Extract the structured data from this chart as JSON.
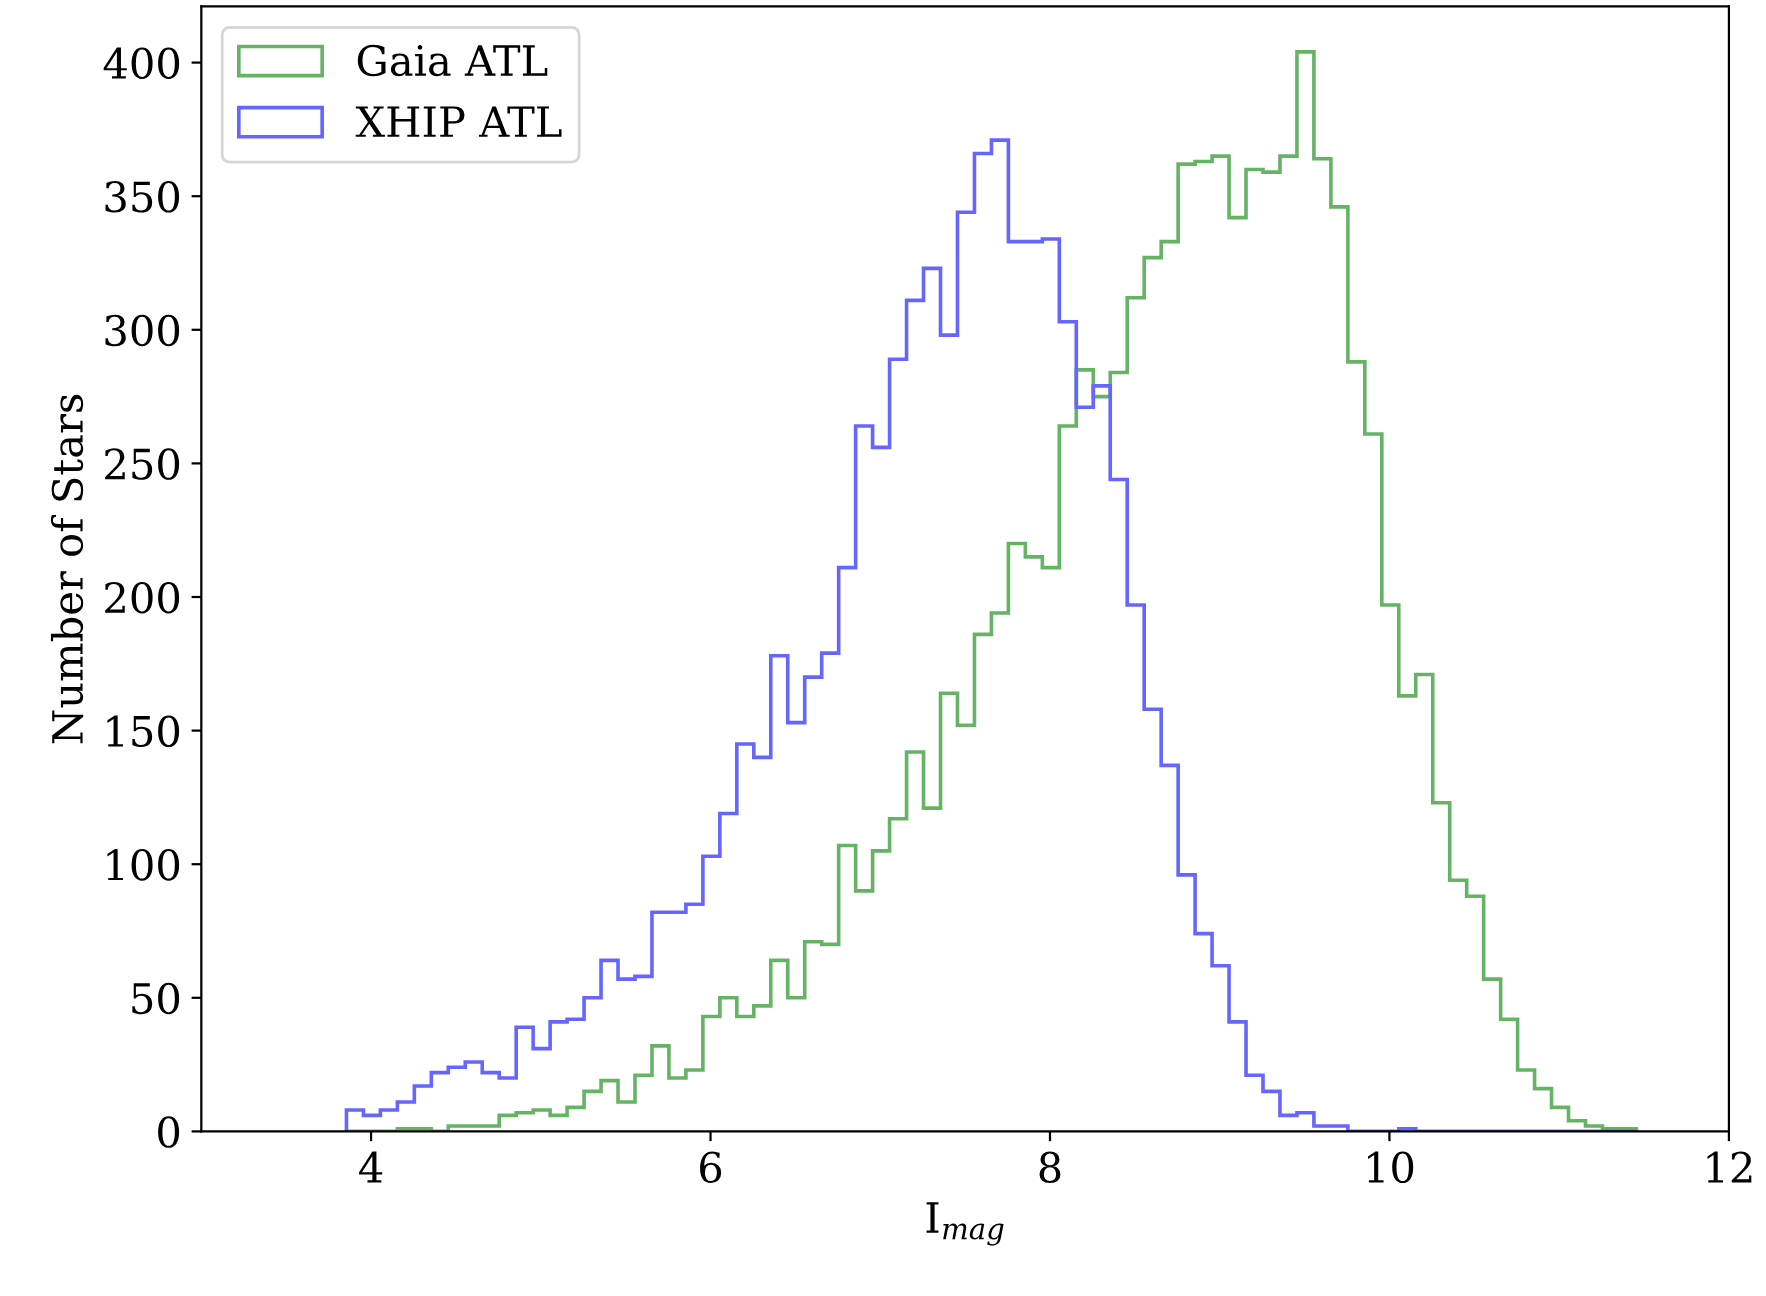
{
  "chart_data": {
    "type": "histogram",
    "xlabel": "I$_{mag}$",
    "ylabel": "Number of Stars",
    "xlim": [
      3,
      12
    ],
    "ylim": [
      0,
      421
    ],
    "xticks": [
      4,
      6,
      8,
      10,
      12
    ],
    "yticks": [
      0,
      50,
      100,
      150,
      200,
      250,
      300,
      350,
      400
    ],
    "legend": "top left",
    "grid": false,
    "bins": [
      3.855,
      3.955,
      4.055,
      4.155,
      4.255,
      4.355,
      4.455,
      4.555,
      4.655,
      4.755,
      4.855,
      4.955,
      5.055,
      5.155,
      5.255,
      5.355,
      5.455,
      5.555,
      5.655,
      5.755,
      5.855,
      5.955,
      6.055,
      6.155,
      6.255,
      6.355,
      6.455,
      6.555,
      6.655,
      6.755,
      6.855,
      6.955,
      7.055,
      7.155,
      7.255,
      7.355,
      7.455,
      7.555,
      7.655,
      7.755,
      7.855,
      7.955,
      8.055,
      8.155,
      8.255,
      8.355,
      8.455,
      8.555,
      8.655,
      8.755,
      8.855,
      8.955,
      9.055,
      9.155,
      9.255,
      9.355,
      9.455,
      9.555,
      9.655,
      9.755,
      9.855,
      9.955,
      10.055,
      10.155,
      10.255,
      10.355,
      10.455,
      10.555,
      10.655,
      10.755,
      10.855,
      10.955,
      11.055,
      11.155,
      11.255,
      11.355,
      11.455
    ],
    "series": [
      {
        "name": "Gaia ATL",
        "color": "#66b366",
        "values": [
          0,
          0,
          0,
          1,
          1,
          0,
          2,
          2,
          2,
          6,
          7,
          8,
          6,
          9,
          15,
          19,
          11,
          21,
          32,
          20,
          23,
          43,
          50,
          43,
          47,
          64,
          50,
          71,
          70,
          107,
          90,
          105,
          117,
          142,
          121,
          164,
          152,
          186,
          194,
          220,
          215,
          211,
          264,
          285,
          275,
          284,
          312,
          327,
          333,
          362,
          363,
          365,
          342,
          360,
          359,
          365,
          404,
          364,
          346,
          288,
          261,
          197,
          163,
          171,
          123,
          94,
          88,
          57,
          42,
          23,
          16,
          9,
          4,
          2,
          1,
          1
        ]
      },
      {
        "name": "XHIP ATL",
        "color": "#6666ff",
        "values": [
          8,
          6,
          8,
          11,
          17,
          22,
          24,
          26,
          22,
          20,
          39,
          31,
          41,
          42,
          50,
          64,
          57,
          58,
          82,
          82,
          85,
          103,
          119,
          145,
          140,
          178,
          153,
          170,
          179,
          211,
          264,
          256,
          289,
          311,
          323,
          298,
          344,
          366,
          371,
          333,
          333,
          334,
          303,
          271,
          279,
          244,
          197,
          158,
          137,
          96,
          74,
          62,
          41,
          21,
          15,
          6,
          7,
          2,
          2,
          0,
          0,
          0,
          1,
          0,
          0,
          0,
          0,
          0,
          0,
          0,
          0,
          0,
          0,
          0,
          0,
          0
        ]
      }
    ]
  }
}
